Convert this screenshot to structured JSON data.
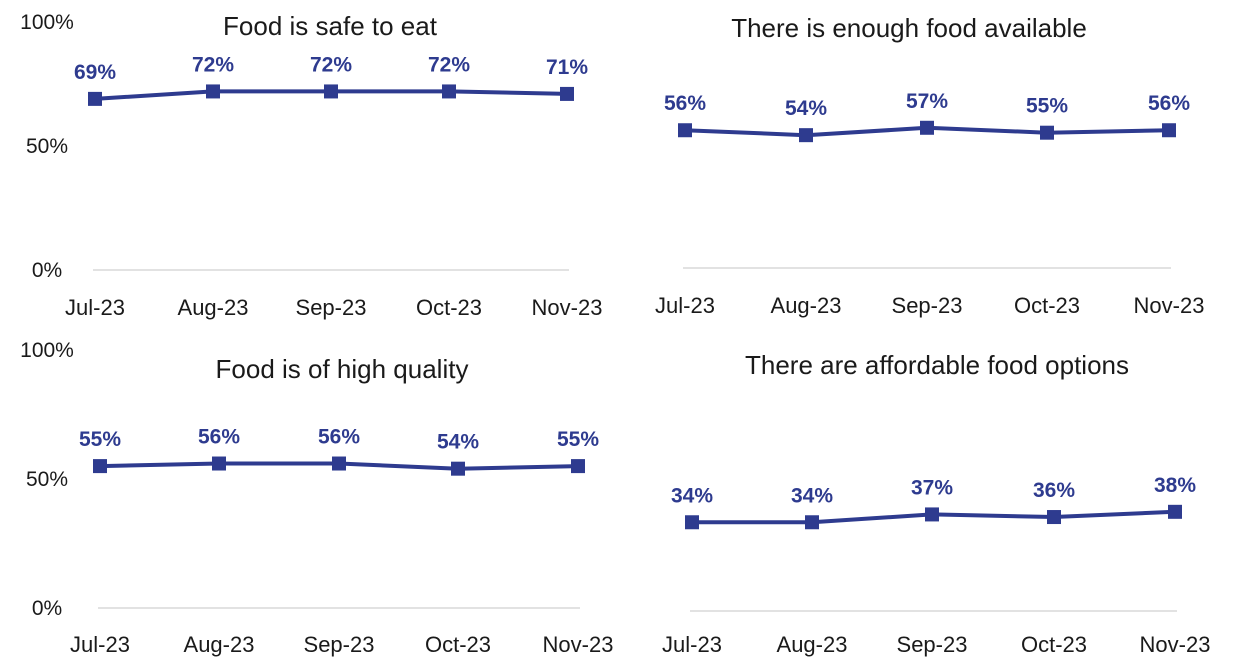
{
  "colors": {
    "series": "#2e3b8f",
    "axis": "#d9d9d9",
    "text": "#1a1a1a"
  },
  "chart_data": [
    {
      "type": "line",
      "title": "Food is safe to eat",
      "categories": [
        "Jul-23",
        "Aug-23",
        "Sep-23",
        "Oct-23",
        "Nov-23"
      ],
      "values": [
        69,
        72,
        72,
        72,
        71
      ],
      "labels": [
        "69%",
        "72%",
        "72%",
        "72%",
        "71%"
      ],
      "ylim": [
        0,
        100
      ],
      "yticks": [
        "0%",
        "50%",
        "100%"
      ],
      "xlabel": "",
      "ylabel": "",
      "grid": false,
      "legend": "none"
    },
    {
      "type": "line",
      "title": "There is enough food available",
      "categories": [
        "Jul-23",
        "Aug-23",
        "Sep-23",
        "Oct-23",
        "Nov-23"
      ],
      "values": [
        56,
        54,
        57,
        55,
        56
      ],
      "labels": [
        "56%",
        "54%",
        "57%",
        "55%",
        "56%"
      ],
      "ylim": [
        0,
        100
      ],
      "yticks": [],
      "xlabel": "",
      "ylabel": "",
      "grid": false,
      "legend": "none"
    },
    {
      "type": "line",
      "title": "Food is of high quality",
      "categories": [
        "Jul-23",
        "Aug-23",
        "Sep-23",
        "Oct-23",
        "Nov-23"
      ],
      "values": [
        55,
        56,
        56,
        54,
        55
      ],
      "labels": [
        "55%",
        "56%",
        "56%",
        "54%",
        "55%"
      ],
      "ylim": [
        0,
        100
      ],
      "yticks": [
        "0%",
        "50%",
        "100%"
      ],
      "xlabel": "",
      "ylabel": "",
      "grid": false,
      "legend": "none"
    },
    {
      "type": "line",
      "title": "There are affordable food options",
      "categories": [
        "Jul-23",
        "Aug-23",
        "Sep-23",
        "Oct-23",
        "Nov-23"
      ],
      "values": [
        34,
        34,
        37,
        36,
        38
      ],
      "labels": [
        "34%",
        "34%",
        "37%",
        "36%",
        "38%"
      ],
      "ylim": [
        0,
        100
      ],
      "yticks": [],
      "xlabel": "",
      "ylabel": "",
      "grid": false,
      "legend": "none"
    }
  ]
}
